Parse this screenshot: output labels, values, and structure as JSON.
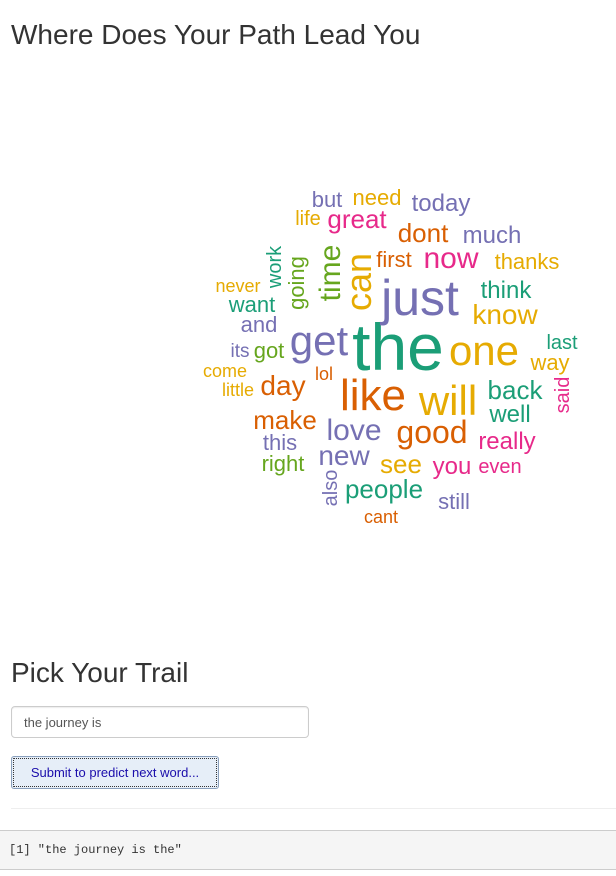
{
  "page": {
    "title": "Where Does Your Path Lead You"
  },
  "wordcloud": {
    "colors": {
      "teal": "#1b9e77",
      "orange": "#d95f02",
      "purple": "#7570b3",
      "pink": "#e7298a",
      "green": "#66a61e",
      "gold": "#e6ab02"
    },
    "words": [
      {
        "text": "the",
        "color": "teal"
      },
      {
        "text": "just",
        "color": "purple"
      },
      {
        "text": "one",
        "color": "gold"
      },
      {
        "text": "like",
        "color": "orange"
      },
      {
        "text": "will",
        "color": "gold"
      },
      {
        "text": "get",
        "color": "purple"
      },
      {
        "text": "can",
        "color": "gold"
      },
      {
        "text": "time",
        "color": "green"
      },
      {
        "text": "good",
        "color": "orange"
      },
      {
        "text": "love",
        "color": "purple"
      },
      {
        "text": "now",
        "color": "pink"
      },
      {
        "text": "know",
        "color": "gold"
      },
      {
        "text": "day",
        "color": "orange"
      },
      {
        "text": "back",
        "color": "teal"
      },
      {
        "text": "people",
        "color": "teal"
      },
      {
        "text": "new",
        "color": "purple"
      },
      {
        "text": "great",
        "color": "pink"
      },
      {
        "text": "dont",
        "color": "orange"
      },
      {
        "text": "make",
        "color": "orange"
      },
      {
        "text": "think",
        "color": "teal"
      },
      {
        "text": "see",
        "color": "gold"
      },
      {
        "text": "you",
        "color": "pink"
      },
      {
        "text": "really",
        "color": "pink"
      },
      {
        "text": "well",
        "color": "teal"
      },
      {
        "text": "much",
        "color": "purple"
      },
      {
        "text": "thanks",
        "color": "gold"
      },
      {
        "text": "today",
        "color": "purple"
      },
      {
        "text": "going",
        "color": "green"
      },
      {
        "text": "this",
        "color": "purple"
      },
      {
        "text": "want",
        "color": "teal"
      },
      {
        "text": "and",
        "color": "purple"
      },
      {
        "text": "right",
        "color": "green"
      },
      {
        "text": "work",
        "color": "teal"
      },
      {
        "text": "need",
        "color": "gold"
      },
      {
        "text": "but",
        "color": "purple"
      },
      {
        "text": "first",
        "color": "orange"
      },
      {
        "text": "last",
        "color": "teal"
      },
      {
        "text": "way",
        "color": "gold"
      },
      {
        "text": "got",
        "color": "green"
      },
      {
        "text": "even",
        "color": "pink"
      },
      {
        "text": "still",
        "color": "purple"
      },
      {
        "text": "said",
        "color": "pink"
      },
      {
        "text": "life",
        "color": "gold"
      },
      {
        "text": "never",
        "color": "gold"
      },
      {
        "text": "its",
        "color": "purple"
      },
      {
        "text": "come",
        "color": "gold"
      },
      {
        "text": "lol",
        "color": "orange"
      },
      {
        "text": "little",
        "color": "gold"
      },
      {
        "text": "also",
        "color": "purple"
      },
      {
        "text": "cant",
        "color": "orange"
      }
    ]
  },
  "trail": {
    "heading": "Pick Your Trail",
    "input_value": "the journey is",
    "submit_label": "Submit to predict next word..."
  },
  "output": {
    "text": "[1] \"the journey is the\""
  }
}
